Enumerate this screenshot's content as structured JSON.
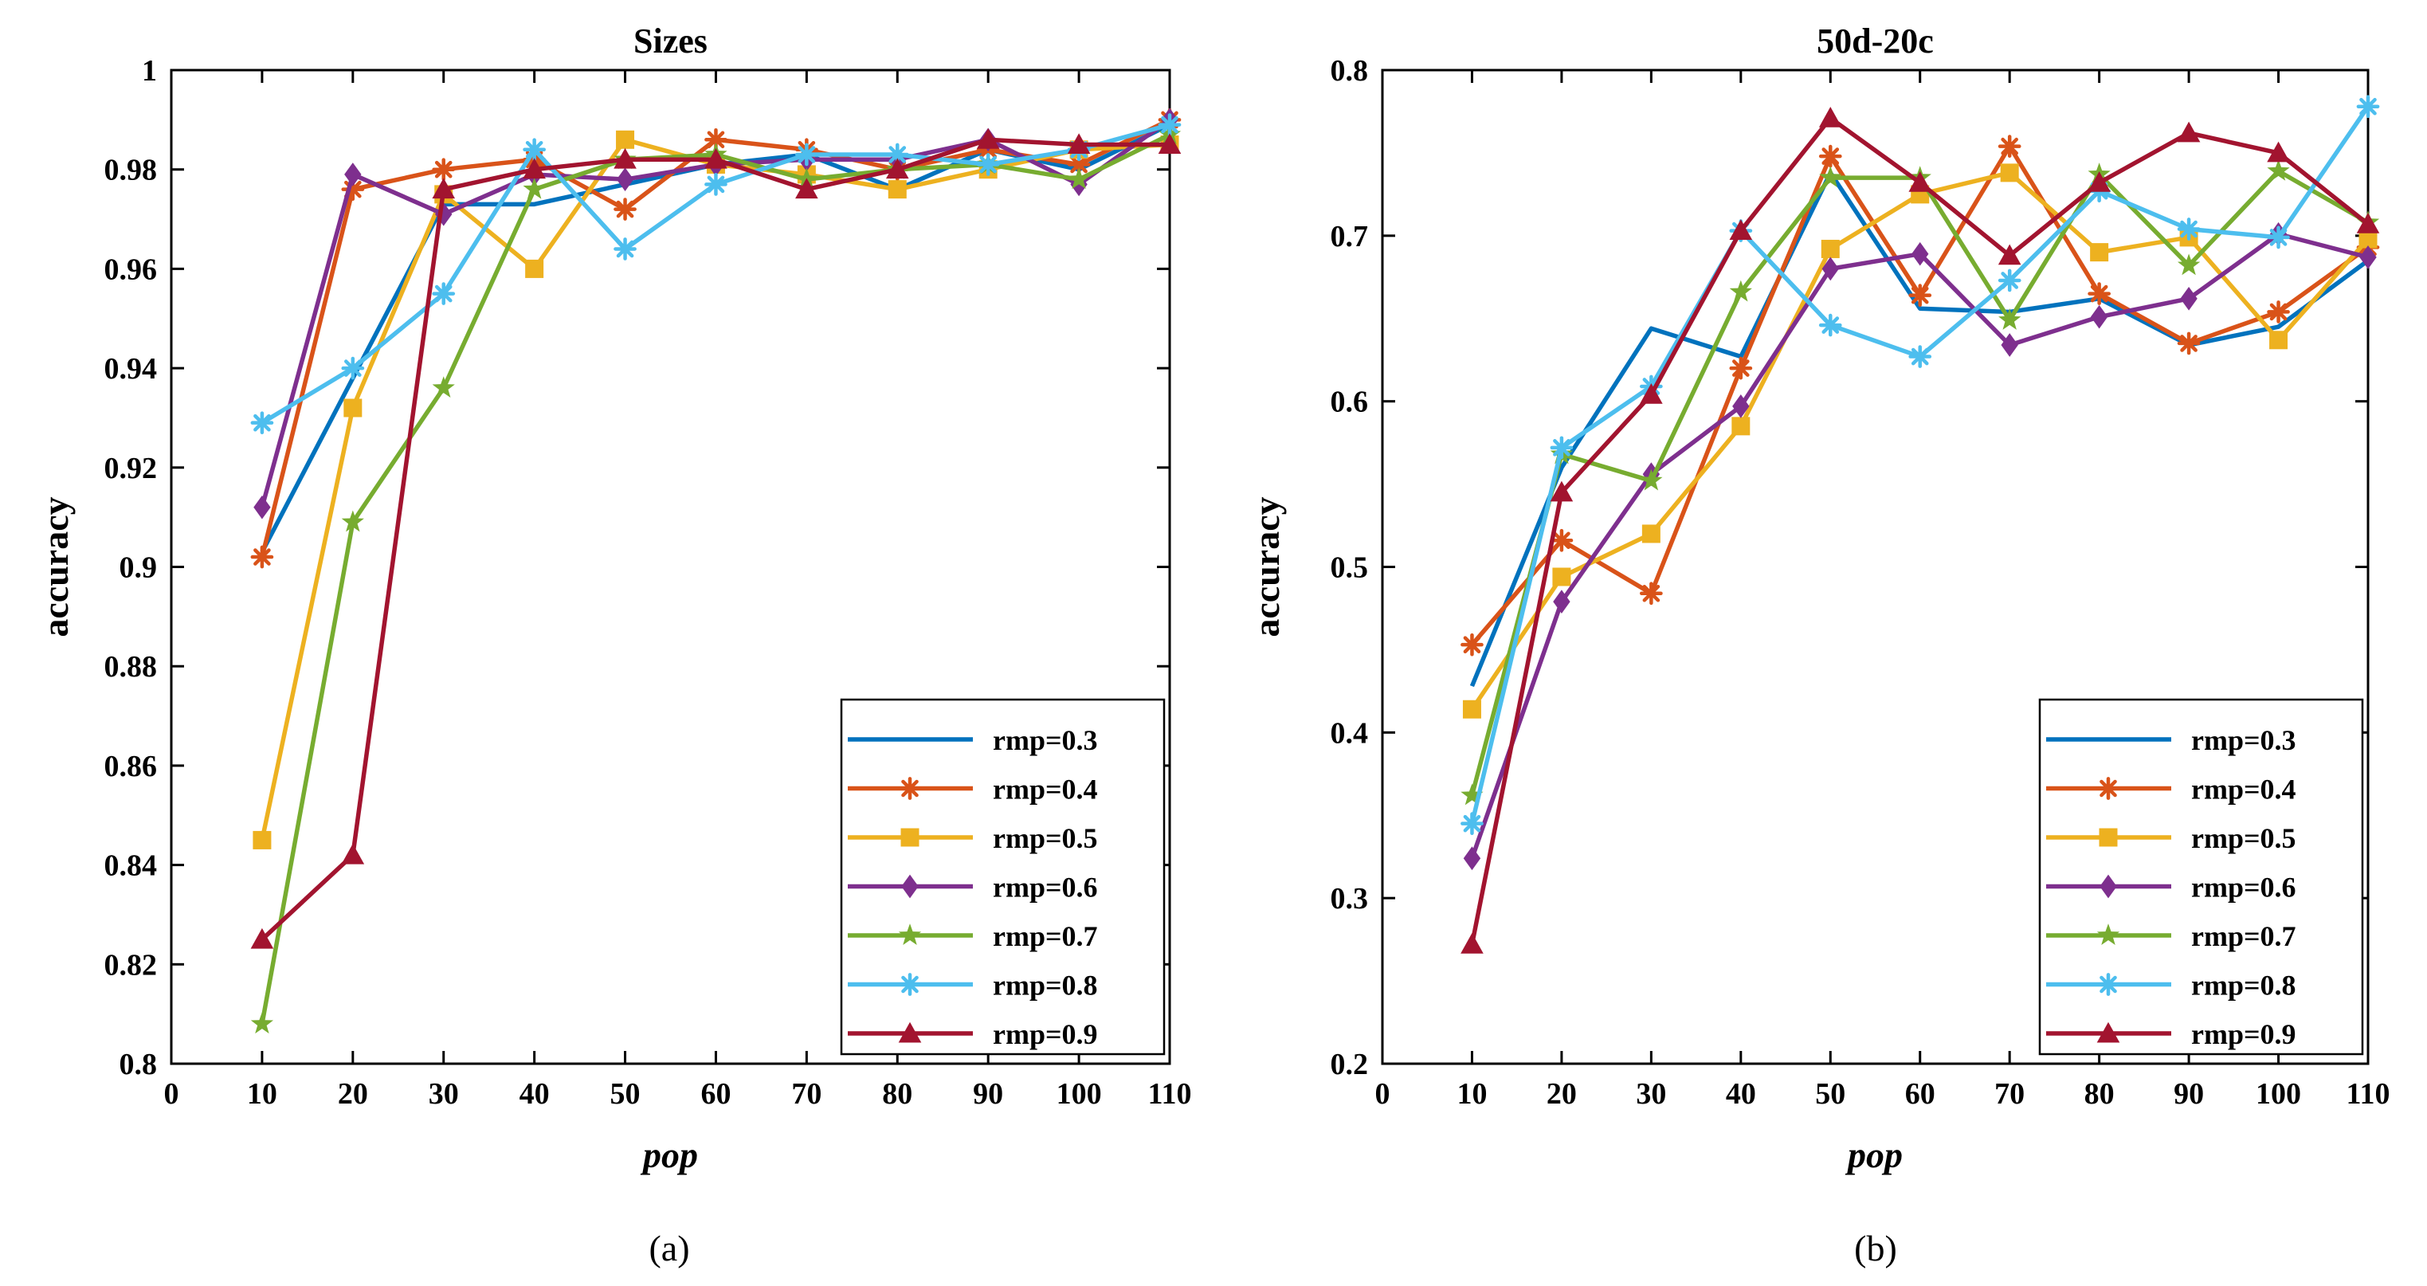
{
  "chart_data": [
    {
      "type": "line",
      "title": "Sizes",
      "xlabel": "pop",
      "ylabel": "accuracy",
      "caption": "(a)",
      "xlim": [
        0,
        110
      ],
      "ylim": [
        0.8,
        1.0
      ],
      "xticks": [
        0,
        10,
        20,
        30,
        40,
        50,
        60,
        70,
        80,
        90,
        100,
        110
      ],
      "yticks": [
        0.8,
        0.82,
        0.84,
        0.86,
        0.88,
        0.9,
        0.92,
        0.94,
        0.96,
        0.98,
        1
      ],
      "ytick_labels": [
        "0.8",
        "0.82",
        "0.84",
        "0.86",
        "0.88",
        "0.9",
        "0.92",
        "0.94",
        "0.96",
        "0.98",
        "1"
      ],
      "legend_position": "bottom-right",
      "x": [
        10,
        20,
        30,
        40,
        50,
        60,
        70,
        80,
        90,
        100,
        110
      ],
      "series": [
        {
          "name": "rmp=0.3",
          "color": "#0072BD",
          "marker": "none",
          "values": [
            0.903,
            0.938,
            0.973,
            0.973,
            0.977,
            0.981,
            0.983,
            0.976,
            0.984,
            0.98,
            0.989
          ]
        },
        {
          "name": "rmp=0.4",
          "color": "#D95319",
          "marker": "asterisk",
          "values": [
            0.902,
            0.976,
            0.98,
            0.982,
            0.972,
            0.986,
            0.984,
            0.98,
            0.984,
            0.981,
            0.99
          ]
        },
        {
          "name": "rmp=0.5",
          "color": "#EDB120",
          "marker": "square",
          "values": [
            0.845,
            0.932,
            0.975,
            0.96,
            0.986,
            0.981,
            0.979,
            0.976,
            0.98,
            0.984,
            0.985
          ]
        },
        {
          "name": "rmp=0.6",
          "color": "#7E2F8E",
          "marker": "diamond",
          "values": [
            0.912,
            0.979,
            0.971,
            0.979,
            0.978,
            0.981,
            0.982,
            0.982,
            0.986,
            0.977,
            0.99
          ]
        },
        {
          "name": "rmp=0.7",
          "color": "#77AC30",
          "marker": "star",
          "values": [
            0.808,
            0.909,
            0.936,
            0.976,
            0.982,
            0.983,
            0.978,
            0.98,
            0.981,
            0.978,
            0.987
          ]
        },
        {
          "name": "rmp=0.8",
          "color": "#4DBEEE",
          "marker": "asterisk",
          "values": [
            0.929,
            0.94,
            0.955,
            0.984,
            0.964,
            0.977,
            0.983,
            0.983,
            0.981,
            0.984,
            0.989
          ]
        },
        {
          "name": "rmp=0.9",
          "color": "#A2142F",
          "marker": "triangle",
          "values": [
            0.825,
            0.842,
            0.976,
            0.98,
            0.982,
            0.982,
            0.976,
            0.98,
            0.986,
            0.985,
            0.985
          ]
        }
      ]
    },
    {
      "type": "line",
      "title": "50d-20c",
      "xlabel": "pop",
      "ylabel": "accuracy",
      "caption": "(b)",
      "xlim": [
        0,
        110
      ],
      "ylim": [
        0.2,
        0.8
      ],
      "xticks": [
        0,
        10,
        20,
        30,
        40,
        50,
        60,
        70,
        80,
        90,
        100,
        110
      ],
      "yticks": [
        0.2,
        0.3,
        0.4,
        0.5,
        0.6,
        0.7,
        0.8
      ],
      "ytick_labels": [
        "0.2",
        "0.3",
        "0.4",
        "0.5",
        "0.6",
        "0.7",
        "0.8"
      ],
      "legend_position": "bottom-right",
      "x": [
        10,
        20,
        30,
        40,
        50,
        60,
        70,
        80,
        90,
        100,
        110
      ],
      "series": [
        {
          "name": "rmp=0.3",
          "color": "#0072BD",
          "marker": "none",
          "values": [
            0.428,
            0.56,
            0.644,
            0.627,
            0.738,
            0.656,
            0.654,
            0.662,
            0.634,
            0.645,
            0.685
          ]
        },
        {
          "name": "rmp=0.4",
          "color": "#D95319",
          "marker": "asterisk",
          "values": [
            0.453,
            0.516,
            0.484,
            0.62,
            0.748,
            0.664,
            0.754,
            0.665,
            0.635,
            0.654,
            0.693
          ]
        },
        {
          "name": "rmp=0.5",
          "color": "#EDB120",
          "marker": "square",
          "values": [
            0.414,
            0.494,
            0.52,
            0.585,
            0.692,
            0.725,
            0.738,
            0.69,
            0.699,
            0.637,
            0.698
          ]
        },
        {
          "name": "rmp=0.6",
          "color": "#7E2F8E",
          "marker": "diamond",
          "values": [
            0.324,
            0.479,
            0.556,
            0.597,
            0.68,
            0.689,
            0.634,
            0.651,
            0.662,
            0.701,
            0.687
          ]
        },
        {
          "name": "rmp=0.7",
          "color": "#77AC30",
          "marker": "star",
          "values": [
            0.362,
            0.568,
            0.552,
            0.666,
            0.735,
            0.735,
            0.649,
            0.737,
            0.682,
            0.739,
            0.708
          ]
        },
        {
          "name": "rmp=0.8",
          "color": "#4DBEEE",
          "marker": "asterisk",
          "values": [
            0.345,
            0.572,
            0.609,
            0.703,
            0.646,
            0.627,
            0.673,
            0.727,
            0.704,
            0.699,
            0.778
          ]
        },
        {
          "name": "rmp=0.9",
          "color": "#A2142F",
          "marker": "triangle",
          "values": [
            0.272,
            0.545,
            0.604,
            0.703,
            0.771,
            0.732,
            0.688,
            0.732,
            0.762,
            0.75,
            0.707
          ]
        }
      ]
    }
  ]
}
